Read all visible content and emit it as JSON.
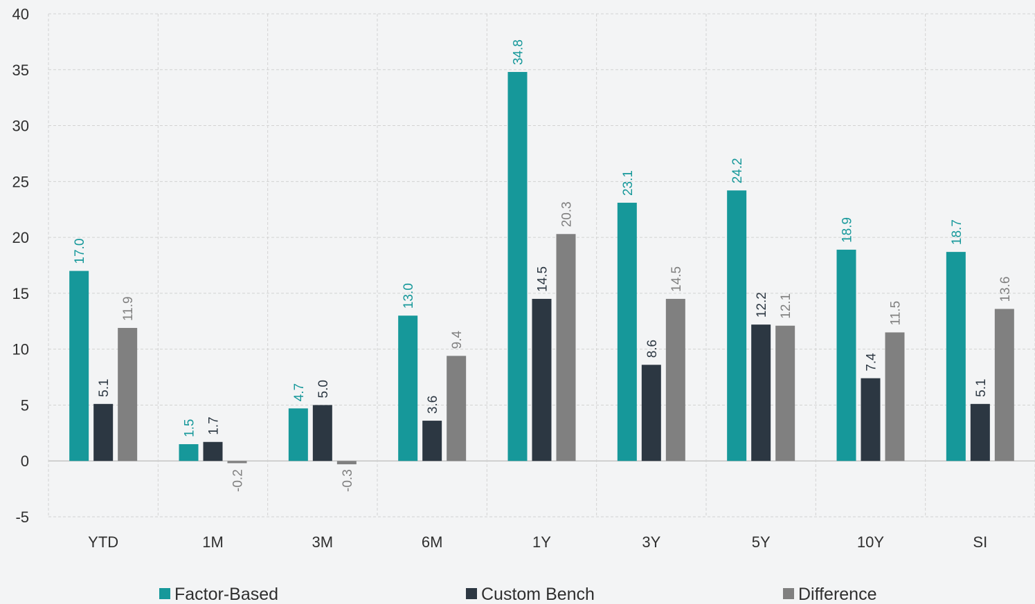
{
  "chart_data": {
    "type": "bar",
    "title": "",
    "xlabel": "",
    "ylabel": "",
    "categories": [
      "YTD",
      "1M",
      "3M",
      "6M",
      "1Y",
      "3Y",
      "5Y",
      "10Y",
      "SI"
    ],
    "ylim": [
      -5,
      40
    ],
    "yticks": [
      -5,
      0,
      5,
      10,
      15,
      20,
      25,
      30,
      35,
      40
    ],
    "ytick_labels": [
      "-5",
      "0",
      "5",
      "10",
      "15",
      "20",
      "25",
      "30",
      "35",
      "40"
    ],
    "grid": true,
    "legend_position": "bottom",
    "series": [
      {
        "name": "Factor-Based",
        "color": "#16989a",
        "values": [
          17.0,
          1.5,
          4.7,
          13.0,
          34.8,
          23.1,
          24.2,
          18.9,
          18.7
        ],
        "labels": [
          "17.0",
          "1.5",
          "4.7",
          "13.0",
          "34.8",
          "23.1",
          "24.2",
          "18.9",
          "18.7"
        ]
      },
      {
        "name": "Custom Bench",
        "color": "#2c3742",
        "values": [
          5.1,
          1.7,
          5.0,
          3.6,
          14.5,
          8.6,
          12.2,
          7.4,
          5.1
        ],
        "labels": [
          "5.1",
          "1.7",
          "5.0",
          "3.6",
          "14.5",
          "8.6",
          "12.2",
          "7.4",
          "5.1"
        ]
      },
      {
        "name": "Difference",
        "color": "#808080",
        "values": [
          11.9,
          -0.2,
          -0.3,
          9.4,
          20.3,
          14.5,
          12.1,
          11.5,
          13.6
        ],
        "labels": [
          "11.9",
          "-0.2",
          "-0.3",
          "9.4",
          "20.3",
          "14.5",
          "12.1",
          "11.5",
          "13.6"
        ]
      }
    ]
  }
}
